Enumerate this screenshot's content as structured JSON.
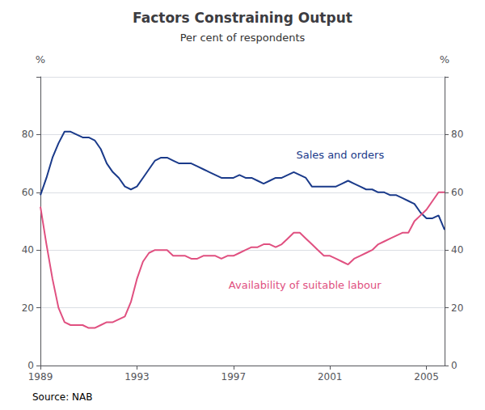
{
  "chart_data": {
    "type": "line",
    "title": "Factors Constraining Output",
    "subtitle": "Per cent of respondents",
    "source": "Source: NAB",
    "ylabel": "%",
    "y2label": "%",
    "x": [
      1989.0,
      1989.25,
      1989.5,
      1989.75,
      1990.0,
      1990.25,
      1990.5,
      1990.75,
      1991.0,
      1991.25,
      1991.5,
      1991.75,
      1992.0,
      1992.25,
      1992.5,
      1992.75,
      1993.0,
      1993.25,
      1993.5,
      1993.75,
      1994.0,
      1994.25,
      1994.5,
      1994.75,
      1995.0,
      1995.25,
      1995.5,
      1995.75,
      1996.0,
      1996.25,
      1996.5,
      1996.75,
      1997.0,
      1997.25,
      1997.5,
      1997.75,
      1998.0,
      1998.25,
      1998.5,
      1998.75,
      1999.0,
      1999.25,
      1999.5,
      1999.75,
      2000.0,
      2000.25,
      2000.5,
      2000.75,
      2001.0,
      2001.25,
      2001.5,
      2001.75,
      2002.0,
      2002.25,
      2002.5,
      2002.75,
      2003.0,
      2003.25,
      2003.5,
      2003.75,
      2004.0,
      2004.25,
      2004.5,
      2004.75,
      2005.0,
      2005.25,
      2005.5,
      2005.75
    ],
    "series": [
      {
        "name": "Sales and orders",
        "color": "#1a3a8a",
        "values": [
          59,
          65,
          72,
          77,
          81,
          81,
          80,
          79,
          79,
          78,
          75,
          70,
          67,
          65,
          62,
          61,
          62,
          65,
          68,
          71,
          72,
          72,
          71,
          70,
          70,
          70,
          69,
          68,
          67,
          66,
          65,
          65,
          65,
          66,
          65,
          65,
          64,
          63,
          64,
          65,
          65,
          66,
          67,
          66,
          65,
          62,
          62,
          62,
          62,
          62,
          63,
          64,
          63,
          62,
          61,
          61,
          60,
          60,
          59,
          59,
          58,
          57,
          56,
          53,
          51,
          51,
          52,
          47
        ]
      },
      {
        "name": "Availability of suitable labour",
        "color": "#e05080",
        "values": [
          55,
          42,
          30,
          20,
          15,
          14,
          14,
          14,
          13,
          13,
          14,
          15,
          15,
          16,
          17,
          22,
          30,
          36,
          39,
          40,
          40,
          40,
          38,
          38,
          38,
          37,
          37,
          38,
          38,
          38,
          37,
          38,
          38,
          39,
          40,
          41,
          41,
          42,
          42,
          41,
          42,
          44,
          46,
          46,
          44,
          42,
          40,
          38,
          38,
          37,
          36,
          35,
          37,
          38,
          39,
          40,
          42,
          43,
          44,
          45,
          46,
          46,
          50,
          52,
          54,
          57,
          60,
          60
        ]
      }
    ],
    "annotations": [
      {
        "text": "Sales and orders",
        "x": 1999.6,
        "y": 73,
        "series": 0
      },
      {
        "text": "Availability of suitable labour",
        "x": 1996.8,
        "y": 28,
        "series": 1
      }
    ],
    "xlim": [
      1989.0,
      2005.75
    ],
    "xticks": [
      1989,
      1993,
      1997,
      2001,
      2005
    ],
    "ylim": [
      0,
      100
    ],
    "yticks": [
      0,
      20,
      40,
      60,
      80,
      {
        "value": 100,
        "label": ""
      }
    ],
    "y2lim": [
      0,
      100
    ],
    "y2ticks": [
      0,
      20,
      40,
      60,
      80,
      {
        "value": 100,
        "label": ""
      }
    ],
    "grid": true
  }
}
